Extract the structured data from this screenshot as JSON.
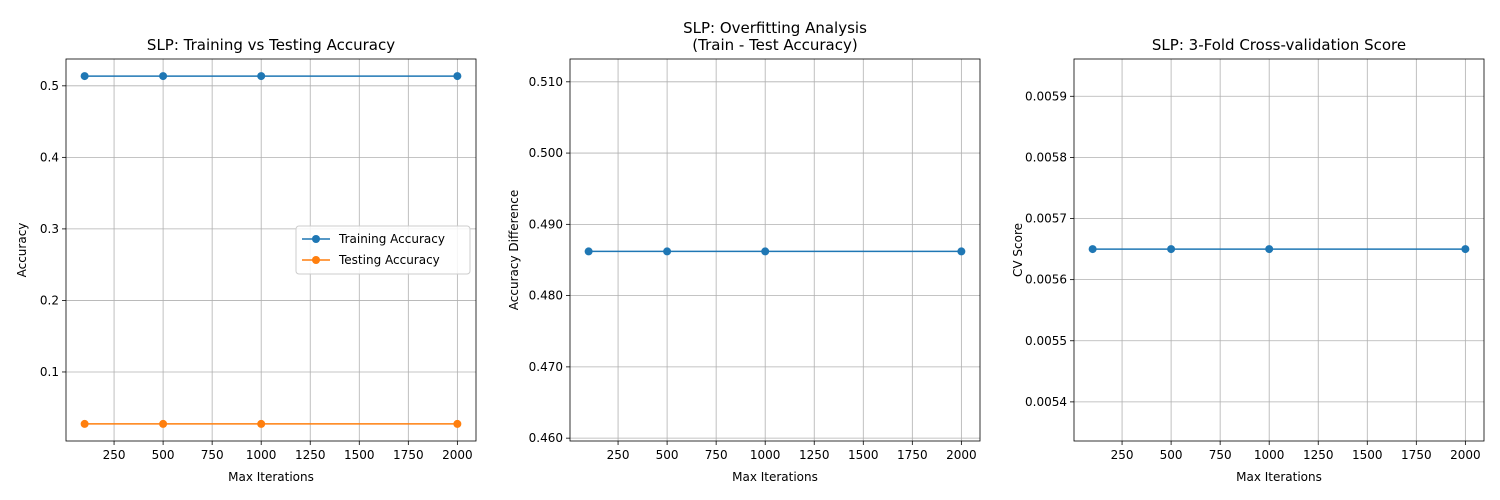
{
  "chart_data": [
    {
      "type": "line",
      "title": "SLP: Training vs Testing Accuracy",
      "xlabel": "Max Iterations",
      "ylabel": "Accuracy",
      "x": [
        100,
        500,
        1000,
        2000
      ],
      "xlim": [
        5,
        2095
      ],
      "ylim": [
        0.0035,
        0.5375
      ],
      "xticks": [
        250,
        500,
        750,
        1000,
        1250,
        1500,
        1750,
        2000
      ],
      "yticks": [
        0.1,
        0.2,
        0.3,
        0.4,
        0.5
      ],
      "grid": true,
      "legend": "center-right",
      "series": [
        {
          "name": "Training Accuracy",
          "color": "#1f77b4",
          "values": [
            0.5136,
            0.5136,
            0.5136,
            0.5136
          ]
        },
        {
          "name": "Testing Accuracy",
          "color": "#ff7f0e",
          "values": [
            0.0274,
            0.0274,
            0.0274,
            0.0274
          ]
        }
      ]
    },
    {
      "type": "line",
      "title": "SLP: Overfitting Analysis\n(Train - Test Accuracy)",
      "xlabel": "Max Iterations",
      "ylabel": "Accuracy Difference",
      "x": [
        100,
        500,
        1000,
        2000
      ],
      "xlim": [
        5,
        2095
      ],
      "ylim": [
        0.4596,
        0.5132
      ],
      "xticks": [
        250,
        500,
        750,
        1000,
        1250,
        1500,
        1750,
        2000
      ],
      "yticks": [
        0.46,
        0.47,
        0.48,
        0.49,
        0.5,
        0.51
      ],
      "grid": true,
      "series": [
        {
          "color": "#1f77b4",
          "values": [
            0.4862,
            0.4862,
            0.4862,
            0.4862
          ]
        }
      ]
    },
    {
      "type": "line",
      "title": "SLP: 3-Fold Cross-validation Score",
      "xlabel": "Max Iterations",
      "ylabel": "CV Score",
      "x": [
        100,
        500,
        1000,
        2000
      ],
      "xlim": [
        5,
        2095
      ],
      "ylim": [
        0.005336,
        0.005961
      ],
      "xticks": [
        250,
        500,
        750,
        1000,
        1250,
        1500,
        1750,
        2000
      ],
      "yticks": [
        0.0054,
        0.0055,
        0.0056,
        0.0057,
        0.0058,
        0.0059
      ],
      "grid": true,
      "series": [
        {
          "color": "#1f77b4",
          "values": [
            0.00565,
            0.00565,
            0.00565,
            0.00565
          ]
        }
      ]
    }
  ]
}
